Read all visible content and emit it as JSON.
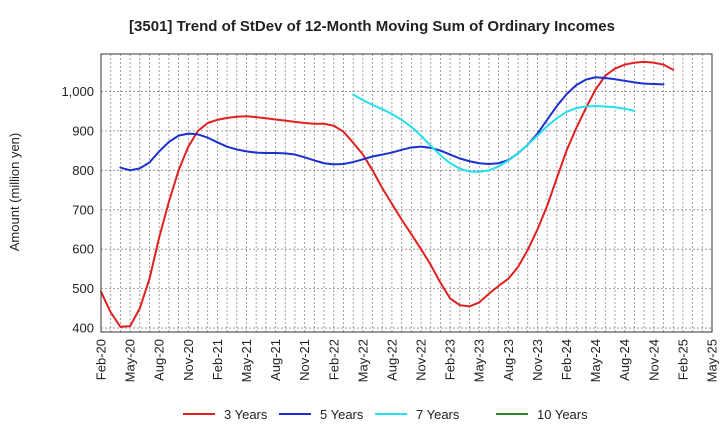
{
  "chart_data": {
    "type": "line",
    "title": "[3501]  Trend of StDev of 12-Month Moving Sum of Ordinary Incomes",
    "xlabel": "",
    "ylabel": "Amount (million yen)",
    "ylim": [
      390,
      1095
    ],
    "yticks": [
      400,
      500,
      600,
      700,
      800,
      900,
      1000
    ],
    "ytick_labels": [
      "400",
      "500",
      "600",
      "700",
      "800",
      "900",
      "1,000"
    ],
    "x_months_total": 63,
    "xtick_labels": [
      "Feb-20",
      "May-20",
      "Aug-20",
      "Nov-20",
      "Feb-21",
      "May-21",
      "Aug-21",
      "Nov-21",
      "Feb-22",
      "May-22",
      "Aug-22",
      "Nov-22",
      "Feb-23",
      "May-23",
      "Aug-23",
      "Nov-23",
      "Feb-24",
      "May-24",
      "Aug-24",
      "Nov-24",
      "Feb-25",
      "May-25"
    ],
    "grid": true,
    "legend_position": "bottom",
    "series": [
      {
        "name": "3 Years",
        "color": "#e02020",
        "start": 0,
        "values": [
          492,
          440,
          403,
          405,
          450,
          525,
          630,
          720,
          800,
          860,
          900,
          920,
          928,
          933,
          936,
          937,
          935,
          932,
          929,
          926,
          923,
          920,
          918,
          918,
          913,
          898,
          870,
          840,
          800,
          755,
          715,
          675,
          638,
          600,
          560,
          515,
          475,
          458,
          455,
          465,
          487,
          507,
          525,
          555,
          598,
          650,
          710,
          780,
          850,
          907,
          958,
          1005,
          1040,
          1058,
          1068,
          1073,
          1075,
          1073,
          1068,
          1055
        ]
      },
      {
        "name": "5 Years",
        "color": "#1c2fcf",
        "start": 2,
        "values": [
          807,
          800,
          805,
          820,
          848,
          872,
          888,
          893,
          891,
          883,
          871,
          860,
          853,
          848,
          845,
          844,
          844,
          843,
          840,
          833,
          825,
          818,
          815,
          816,
          821,
          828,
          835,
          840,
          845,
          852,
          858,
          860,
          857,
          850,
          840,
          830,
          823,
          818,
          816,
          818,
          826,
          843,
          865,
          893,
          928,
          963,
          993,
          1016,
          1030,
          1036,
          1034,
          1031,
          1027,
          1023,
          1020,
          1019,
          1018
        ]
      },
      {
        "name": "7 Years",
        "color": "#22e0ee",
        "start": 26,
        "values": [
          992,
          978,
          966,
          955,
          943,
          928,
          910,
          888,
          862,
          838,
          818,
          804,
          797,
          796,
          800,
          810,
          825,
          843,
          865,
          888,
          912,
          932,
          948,
          958,
          962,
          963,
          962,
          960,
          956,
          951
        ]
      },
      {
        "name": "10 Years",
        "color": "#2a8a2a",
        "start": 0,
        "values": []
      }
    ]
  }
}
